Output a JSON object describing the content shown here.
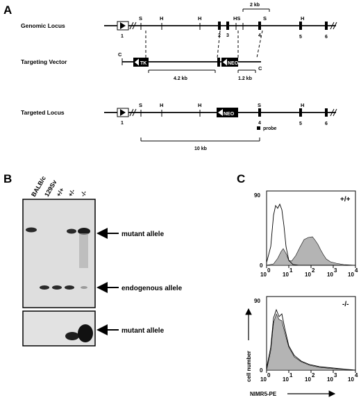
{
  "panels": {
    "a": {
      "letter": "A",
      "rows": {
        "genomic": "Genomic Locus",
        "vector": "Targeting Vector",
        "targeted": "Targeted Locus"
      },
      "sites": {
        "s": "S",
        "h": "H",
        "hs": "HS",
        "c": "C"
      },
      "exons": [
        "1",
        "2",
        "3",
        "4",
        "5",
        "6"
      ],
      "boxes": {
        "tk": "TK",
        "neo": "NEO"
      },
      "scale_bar": "2 kb",
      "arms": {
        "long": "4.2 kb",
        "short": "1.2 kb"
      },
      "fragment": "10 kb",
      "probe": "probe"
    },
    "b": {
      "letter": "B",
      "lanes": [
        "BALB/c",
        "129Sv",
        "+/+",
        "+/-",
        "-/-"
      ],
      "bands": {
        "mutant_top": "mutant allele",
        "endogenous": "endogenous allele",
        "mutant_bottom": "mutant allele"
      }
    },
    "c": {
      "letter": "C",
      "plots": [
        {
          "genotype": "+/+",
          "ymax": "90",
          "ymin": "0"
        },
        {
          "genotype": "-/-",
          "ymax": "90",
          "ymin": "0"
        }
      ],
      "x_ticks": [
        "10",
        "10",
        "10",
        "10",
        "10"
      ],
      "x_exps": [
        "0",
        "1",
        "2",
        "3",
        "4"
      ],
      "y_label": "cell number",
      "x_label": "NIMR5-PE"
    }
  },
  "colors": {
    "ink": "#000000",
    "histogram_fill": "#b4b4b4",
    "blot_bg": "#dcdcdc",
    "band": "#2a2a2a"
  }
}
